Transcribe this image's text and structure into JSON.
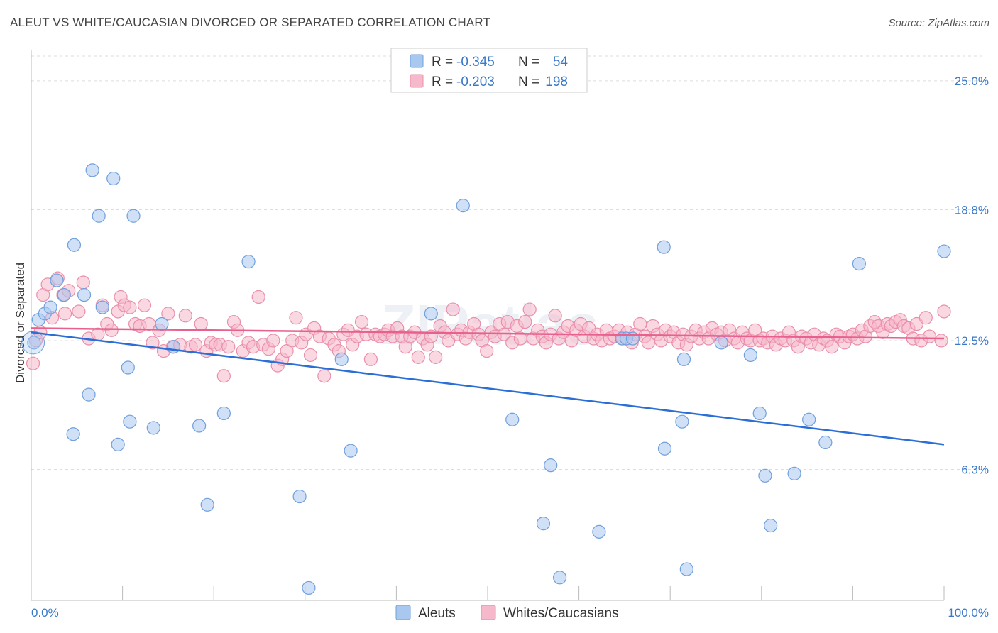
{
  "title": "ALEUT VS WHITE/CAUCASIAN DIVORCED OR SEPARATED CORRELATION CHART",
  "source": "Source: ZipAtlas.com",
  "watermark": "ZIPatlas",
  "colors": {
    "aleut_fill": "#a9c8f0",
    "aleut_stroke": "#6f9fdc",
    "aleut_line": "#2b6fd6",
    "white_fill": "#f6b8cb",
    "white_stroke": "#ea8fab",
    "white_line": "#e8608e",
    "tick_label": "#3a78c8",
    "grid": "#dddddd"
  },
  "legend": {
    "rows": [
      {
        "r_label": "R =",
        "r_value": "-0.345",
        "n_label": "N =",
        "n_value": "54"
      },
      {
        "r_label": "R =",
        "r_value": "-0.203",
        "n_label": "N =",
        "n_value": "198"
      }
    ]
  },
  "chart_data": {
    "type": "scatter",
    "ylabel": "Divorced or Separated",
    "xlim": [
      0,
      100
    ],
    "ylim": [
      0,
      26.5
    ],
    "y_ticks": [
      6.3,
      12.5,
      18.8,
      25.0
    ],
    "y_tick_labels": [
      "6.3%",
      "12.5%",
      "18.8%",
      "25.0%"
    ],
    "x_tick_labels": [
      "0.0%",
      "100.0%"
    ],
    "series": [
      {
        "name": "Aleuts",
        "trend": {
          "x": [
            0,
            100
          ],
          "y": [
            12.9,
            7.5
          ]
        },
        "points": [
          [
            0.3,
            12.4
          ],
          [
            0.8,
            13.5
          ],
          [
            1.5,
            13.8
          ],
          [
            2.1,
            14.1
          ],
          [
            2.8,
            15.4
          ],
          [
            3.6,
            14.7
          ],
          [
            4.6,
            8.0
          ],
          [
            4.7,
            17.1
          ],
          [
            5.8,
            14.7
          ],
          [
            6.3,
            9.9
          ],
          [
            6.7,
            20.7
          ],
          [
            7.4,
            18.5
          ],
          [
            7.8,
            14.1
          ],
          [
            9.0,
            20.3
          ],
          [
            9.5,
            7.5
          ],
          [
            10.6,
            11.2
          ],
          [
            10.8,
            8.6
          ],
          [
            11.2,
            18.5
          ],
          [
            13.4,
            8.3
          ],
          [
            14.3,
            13.3
          ],
          [
            15.6,
            12.2
          ],
          [
            18.4,
            8.4
          ],
          [
            19.3,
            4.6
          ],
          [
            21.1,
            9.0
          ],
          [
            23.8,
            16.3
          ],
          [
            29.4,
            5.0
          ],
          [
            30.4,
            0.6
          ],
          [
            34.0,
            11.6
          ],
          [
            35.0,
            7.2
          ],
          [
            43.8,
            13.8
          ],
          [
            47.3,
            19.0
          ],
          [
            52.7,
            8.7
          ],
          [
            56.1,
            3.7
          ],
          [
            56.9,
            6.5
          ],
          [
            57.9,
            1.1
          ],
          [
            62.2,
            3.3
          ],
          [
            64.7,
            12.6
          ],
          [
            65.2,
            12.6
          ],
          [
            69.3,
            17.0
          ],
          [
            69.4,
            7.3
          ],
          [
            71.3,
            8.6
          ],
          [
            71.8,
            1.5
          ],
          [
            71.5,
            11.6
          ],
          [
            75.6,
            12.4
          ],
          [
            78.8,
            11.8
          ],
          [
            79.8,
            9.0
          ],
          [
            80.4,
            6.0
          ],
          [
            81.0,
            3.6
          ],
          [
            83.6,
            6.1
          ],
          [
            85.2,
            8.7
          ],
          [
            87.0,
            7.6
          ],
          [
            90.7,
            16.2
          ],
          [
            100.0,
            16.8
          ],
          [
            65.9,
            12.6
          ]
        ]
      },
      {
        "name": "Whites/Caucasians",
        "trend": {
          "x": [
            0,
            100
          ],
          "y": [
            13.1,
            12.6
          ]
        },
        "points": [
          [
            0.2,
            11.4
          ],
          [
            0.5,
            12.5
          ],
          [
            1.3,
            14.7
          ],
          [
            1.8,
            15.2
          ],
          [
            2.3,
            13.6
          ],
          [
            2.9,
            15.5
          ],
          [
            3.5,
            14.7
          ],
          [
            3.7,
            13.8
          ],
          [
            4.1,
            14.9
          ],
          [
            5.2,
            13.9
          ],
          [
            5.7,
            15.3
          ],
          [
            6.3,
            12.6
          ],
          [
            7.3,
            12.8
          ],
          [
            7.8,
            14.2
          ],
          [
            8.3,
            13.3
          ],
          [
            8.8,
            13.0
          ],
          [
            9.5,
            13.9
          ],
          [
            9.8,
            14.6
          ],
          [
            10.2,
            14.2
          ],
          [
            10.8,
            14.1
          ],
          [
            11.4,
            13.3
          ],
          [
            11.9,
            13.2
          ],
          [
            12.4,
            14.2
          ],
          [
            12.9,
            13.3
          ],
          [
            13.3,
            12.4
          ],
          [
            14.0,
            13.0
          ],
          [
            14.5,
            12.0
          ],
          [
            15.0,
            13.8
          ],
          [
            15.5,
            12.2
          ],
          [
            16.3,
            12.3
          ],
          [
            16.9,
            13.7
          ],
          [
            17.5,
            12.2
          ],
          [
            18.0,
            12.3
          ],
          [
            18.6,
            13.3
          ],
          [
            19.2,
            12.0
          ],
          [
            19.7,
            12.4
          ],
          [
            20.2,
            12.3
          ],
          [
            20.7,
            12.3
          ],
          [
            21.1,
            10.8
          ],
          [
            21.6,
            12.2
          ],
          [
            22.2,
            13.4
          ],
          [
            22.6,
            13.0
          ],
          [
            23.2,
            12.0
          ],
          [
            23.8,
            12.4
          ],
          [
            24.3,
            12.2
          ],
          [
            24.9,
            14.6
          ],
          [
            25.4,
            12.3
          ],
          [
            26.0,
            12.1
          ],
          [
            26.5,
            12.5
          ],
          [
            27.0,
            11.3
          ],
          [
            27.5,
            11.6
          ],
          [
            28.0,
            12.0
          ],
          [
            28.6,
            12.5
          ],
          [
            29.0,
            13.6
          ],
          [
            29.6,
            12.4
          ],
          [
            30.1,
            12.8
          ],
          [
            30.6,
            11.8
          ],
          [
            31.0,
            13.1
          ],
          [
            31.6,
            12.7
          ],
          [
            32.1,
            10.8
          ],
          [
            32.6,
            12.6
          ],
          [
            33.2,
            12.3
          ],
          [
            33.7,
            12.0
          ],
          [
            34.2,
            12.8
          ],
          [
            34.7,
            13.0
          ],
          [
            35.2,
            12.3
          ],
          [
            35.7,
            12.7
          ],
          [
            36.2,
            13.4
          ],
          [
            36.7,
            12.8
          ],
          [
            37.2,
            11.6
          ],
          [
            37.7,
            12.8
          ],
          [
            38.2,
            12.7
          ],
          [
            38.7,
            12.8
          ],
          [
            39.1,
            13.0
          ],
          [
            39.6,
            12.7
          ],
          [
            40.1,
            13.1
          ],
          [
            40.6,
            12.7
          ],
          [
            41.0,
            12.2
          ],
          [
            41.5,
            12.7
          ],
          [
            42.0,
            12.9
          ],
          [
            42.4,
            11.7
          ],
          [
            42.9,
            12.6
          ],
          [
            43.4,
            12.3
          ],
          [
            43.8,
            12.7
          ],
          [
            44.3,
            11.7
          ],
          [
            44.8,
            13.2
          ],
          [
            45.3,
            12.9
          ],
          [
            45.7,
            12.5
          ],
          [
            46.2,
            14.0
          ],
          [
            46.7,
            12.8
          ],
          [
            47.1,
            13.0
          ],
          [
            47.6,
            12.6
          ],
          [
            48.0,
            12.9
          ],
          [
            48.5,
            13.3
          ],
          [
            49.0,
            12.8
          ],
          [
            49.4,
            12.5
          ],
          [
            49.9,
            12.0
          ],
          [
            50.4,
            12.9
          ],
          [
            50.8,
            12.7
          ],
          [
            51.3,
            13.3
          ],
          [
            51.8,
            12.8
          ],
          [
            52.2,
            13.4
          ],
          [
            52.7,
            12.4
          ],
          [
            53.2,
            13.2
          ],
          [
            53.6,
            12.6
          ],
          [
            54.1,
            13.4
          ],
          [
            54.6,
            14.0
          ],
          [
            55.0,
            12.6
          ],
          [
            55.5,
            13.0
          ],
          [
            56.0,
            12.7
          ],
          [
            56.4,
            12.4
          ],
          [
            56.9,
            12.8
          ],
          [
            57.4,
            13.7
          ],
          [
            57.8,
            12.6
          ],
          [
            58.3,
            12.9
          ],
          [
            58.8,
            13.2
          ],
          [
            59.2,
            12.5
          ],
          [
            59.7,
            13.0
          ],
          [
            60.2,
            13.3
          ],
          [
            60.6,
            12.7
          ],
          [
            61.1,
            13.1
          ],
          [
            61.6,
            12.6
          ],
          [
            62.0,
            12.8
          ],
          [
            62.5,
            12.5
          ],
          [
            63.0,
            13.0
          ],
          [
            63.4,
            12.6
          ],
          [
            63.9,
            12.7
          ],
          [
            64.4,
            13.0
          ],
          [
            64.8,
            12.6
          ],
          [
            65.3,
            12.9
          ],
          [
            65.8,
            12.4
          ],
          [
            66.2,
            12.8
          ],
          [
            66.7,
            13.3
          ],
          [
            67.2,
            12.7
          ],
          [
            67.6,
            12.4
          ],
          [
            68.1,
            13.2
          ],
          [
            68.6,
            12.8
          ],
          [
            69.0,
            12.5
          ],
          [
            69.5,
            13.0
          ],
          [
            70.0,
            12.7
          ],
          [
            70.4,
            12.9
          ],
          [
            70.9,
            12.4
          ],
          [
            71.4,
            12.8
          ],
          [
            71.8,
            12.3
          ],
          [
            72.3,
            12.7
          ],
          [
            72.8,
            13.0
          ],
          [
            73.2,
            12.6
          ],
          [
            73.7,
            12.9
          ],
          [
            74.2,
            12.6
          ],
          [
            74.6,
            13.1
          ],
          [
            75.1,
            12.8
          ],
          [
            75.6,
            12.9
          ],
          [
            76.0,
            12.5
          ],
          [
            76.5,
            13.0
          ],
          [
            77.0,
            12.6
          ],
          [
            77.4,
            12.4
          ],
          [
            77.9,
            12.9
          ],
          [
            78.4,
            12.6
          ],
          [
            78.8,
            12.5
          ],
          [
            79.3,
            13.0
          ],
          [
            79.8,
            12.5
          ],
          [
            80.2,
            12.6
          ],
          [
            80.7,
            12.4
          ],
          [
            81.2,
            12.7
          ],
          [
            81.6,
            12.3
          ],
          [
            82.1,
            12.6
          ],
          [
            82.6,
            12.5
          ],
          [
            83.0,
            12.9
          ],
          [
            83.5,
            12.5
          ],
          [
            84.0,
            12.2
          ],
          [
            84.4,
            12.7
          ],
          [
            84.9,
            12.6
          ],
          [
            85.4,
            12.4
          ],
          [
            85.8,
            12.8
          ],
          [
            86.3,
            12.3
          ],
          [
            86.8,
            12.6
          ],
          [
            87.2,
            12.5
          ],
          [
            87.7,
            12.2
          ],
          [
            88.2,
            12.8
          ],
          [
            88.6,
            12.7
          ],
          [
            89.1,
            12.4
          ],
          [
            89.6,
            12.7
          ],
          [
            90.0,
            12.8
          ],
          [
            90.5,
            12.6
          ],
          [
            91.0,
            13.0
          ],
          [
            91.4,
            12.7
          ],
          [
            91.9,
            13.2
          ],
          [
            92.4,
            13.4
          ],
          [
            92.8,
            13.2
          ],
          [
            93.3,
            12.9
          ],
          [
            93.8,
            13.3
          ],
          [
            94.2,
            13.2
          ],
          [
            94.7,
            13.4
          ],
          [
            95.2,
            13.5
          ],
          [
            95.6,
            13.2
          ],
          [
            96.1,
            13.1
          ],
          [
            96.6,
            12.6
          ],
          [
            97.0,
            13.3
          ],
          [
            97.5,
            12.5
          ],
          [
            98.0,
            13.6
          ],
          [
            98.4,
            12.7
          ],
          [
            99.7,
            12.5
          ],
          [
            100.0,
            13.9
          ],
          [
            1.0,
            12.9
          ]
        ]
      }
    ]
  }
}
